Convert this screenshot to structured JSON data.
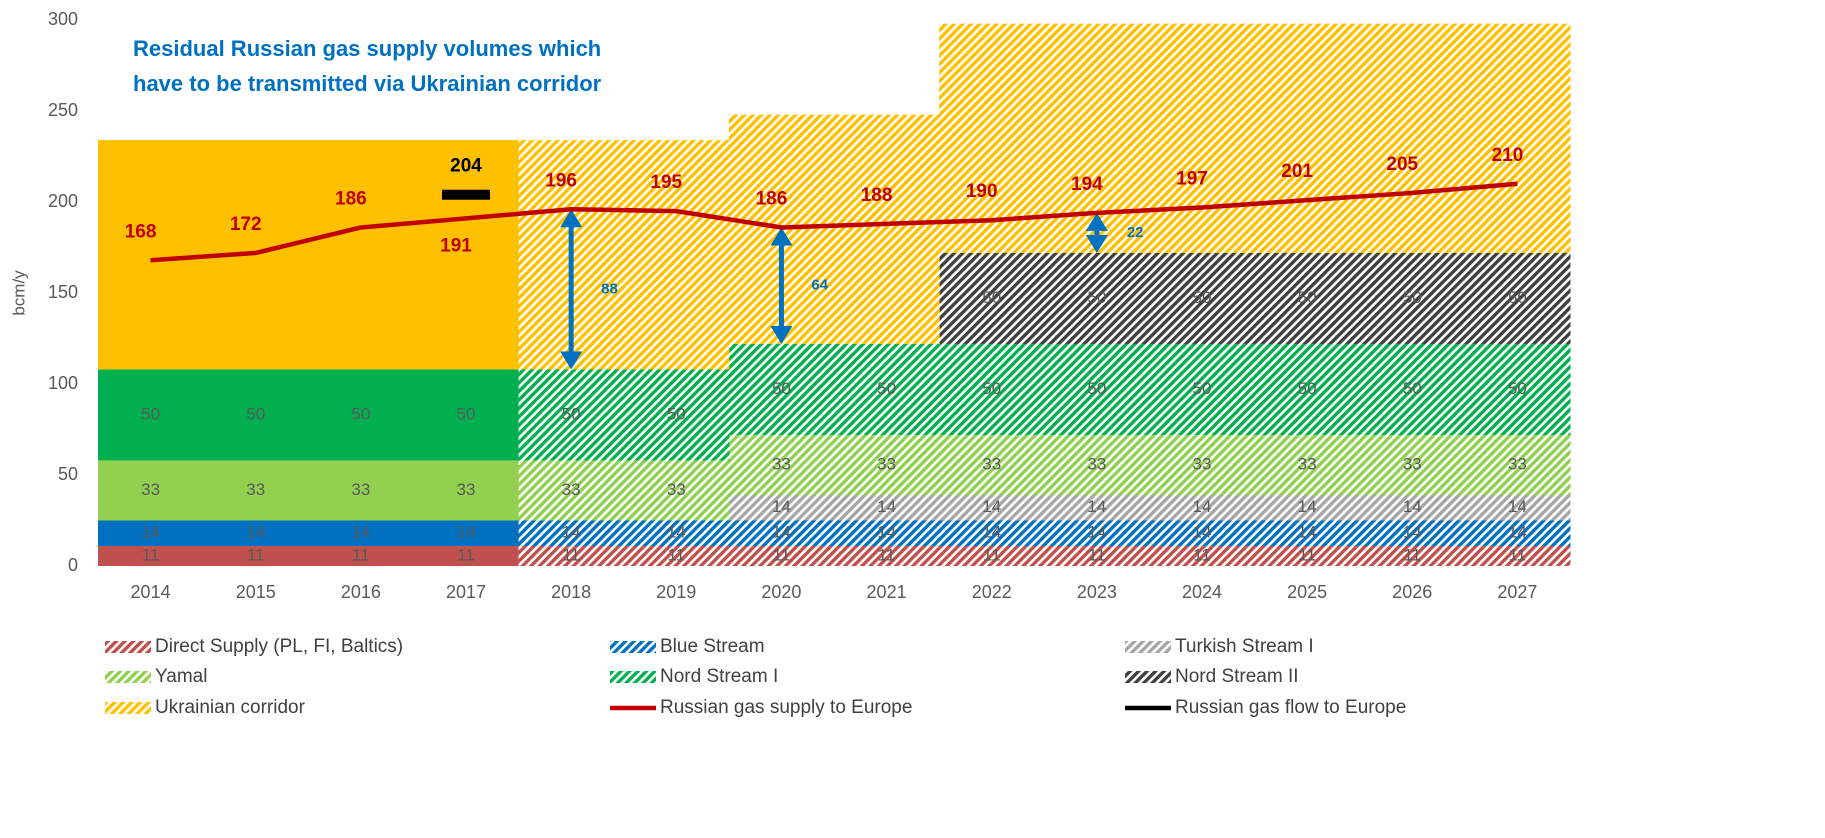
{
  "chart_data": {
    "type": "bar",
    "stacked": true,
    "title_lines": [
      "Residual Russian gas supply volumes which",
      "have to be transmitted via Ukrainian corridor"
    ],
    "ylabel": "bcm/y",
    "categories": [
      "2014",
      "2015",
      "2016",
      "2017",
      "2018",
      "2019",
      "2020",
      "2021",
      "2022",
      "2023",
      "2024",
      "2025",
      "2026",
      "2027"
    ],
    "ylim": [
      0,
      300
    ],
    "yticks": [
      0,
      50,
      100,
      150,
      200,
      250,
      300
    ],
    "hatch_from_index": 4,
    "legend": "bottom",
    "series": [
      {
        "name": "Direct Supply (PL, FI, Baltics)",
        "kind": "area",
        "color": "#c0504d",
        "show_labels": true,
        "values": [
          11,
          11,
          11,
          11,
          11,
          11,
          11,
          11,
          11,
          11,
          11,
          11,
          11,
          11
        ]
      },
      {
        "name": "Blue Stream",
        "kind": "area",
        "color": "#0070c0",
        "show_labels": true,
        "values": [
          14,
          14,
          14,
          14,
          14,
          14,
          14,
          14,
          14,
          14,
          14,
          14,
          14,
          14
        ]
      },
      {
        "name": "Turkish Stream I",
        "kind": "area",
        "color": "#a6a6a6",
        "show_labels": true,
        "values": [
          null,
          null,
          null,
          null,
          null,
          null,
          14,
          14,
          14,
          14,
          14,
          14,
          14,
          14
        ]
      },
      {
        "name": "Yamal",
        "kind": "area",
        "color": "#92d050",
        "show_labels": true,
        "values": [
          33,
          33,
          33,
          33,
          33,
          33,
          33,
          33,
          33,
          33,
          33,
          33,
          33,
          33
        ]
      },
      {
        "name": "Nord Stream I",
        "kind": "area",
        "color": "#00b050",
        "show_labels": true,
        "values": [
          50,
          50,
          50,
          50,
          50,
          50,
          50,
          50,
          50,
          50,
          50,
          50,
          50,
          50
        ]
      },
      {
        "name": "Nord Stream II",
        "kind": "area",
        "color": "#404040",
        "show_labels": true,
        "values": [
          null,
          null,
          null,
          null,
          null,
          null,
          null,
          null,
          50,
          50,
          50,
          50,
          50,
          50
        ]
      },
      {
        "name": "Ukrainian corridor",
        "kind": "area",
        "color": "#ffc000",
        "show_labels": false,
        "values": [
          126,
          126,
          126,
          126,
          126,
          126,
          126,
          126,
          126,
          126,
          126,
          126,
          126,
          126
        ]
      },
      {
        "name": "Russian gas supply to Europe",
        "kind": "line",
        "color": "#c00000",
        "values": [
          168,
          172,
          186,
          191,
          196,
          195,
          186,
          188,
          190,
          194,
          197,
          201,
          205,
          210
        ],
        "label_positions": [
          "above",
          "above",
          "above",
          "below",
          "above",
          "above",
          "above",
          "above",
          "above",
          "above",
          "above",
          "above",
          "above",
          "above"
        ]
      },
      {
        "name": "Russian gas flow to Europe",
        "kind": "marker",
        "color": "#000000",
        "values": [
          null,
          null,
          null,
          204,
          null,
          null,
          null,
          null,
          null,
          null,
          null,
          null,
          null,
          null
        ],
        "label_positions": [
          "above",
          "above",
          "above",
          "above",
          "above",
          "above",
          "above",
          "above",
          "above",
          "above",
          "above",
          "above",
          "above",
          "above"
        ]
      }
    ],
    "arrows": [
      {
        "x_index": 4,
        "from": 196,
        "to": 108,
        "value": 88
      },
      {
        "x_index": 6,
        "from": 186,
        "to": 122,
        "value": 64
      },
      {
        "x_index": 9,
        "from": 194,
        "to": 172,
        "value": 22
      }
    ],
    "arrow_color": "#0070c0"
  }
}
